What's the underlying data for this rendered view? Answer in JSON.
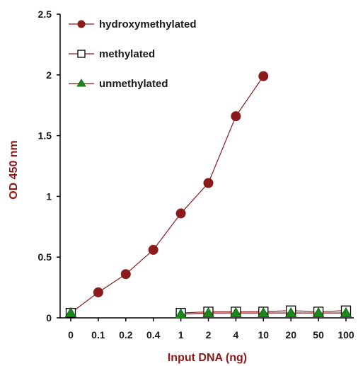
{
  "chart_data": {
    "type": "line",
    "xlabel": "Input DNA (ng)",
    "ylabel": "OD 450 nm",
    "categories": [
      "0",
      "0.1",
      "0.2",
      "0.4",
      "1",
      "2",
      "4",
      "10",
      "20",
      "50",
      "100"
    ],
    "ylim": [
      0,
      2.5
    ],
    "yticks": [
      0,
      0.5,
      1,
      1.5,
      2,
      2.5
    ],
    "ytick_labels": [
      "0",
      "0.5",
      "1",
      "1.5",
      "2",
      "2.5"
    ],
    "legend_position": "top-left",
    "grid": false,
    "axis_label_color": "#8b1a1a",
    "series": [
      {
        "name": "hydroxymethylated",
        "marker": "circle",
        "color": "#8b1a1a",
        "marker_fill": "#8b1a1a",
        "values": [
          0.04,
          0.21,
          0.36,
          0.56,
          0.86,
          1.11,
          1.66,
          1.99,
          null,
          null,
          null
        ]
      },
      {
        "name": "methylated",
        "marker": "square",
        "color": "#8b1a1a",
        "marker_fill": "#ffffff",
        "marker_stroke": "#000000",
        "values": [
          0.04,
          null,
          null,
          null,
          0.04,
          0.05,
          0.05,
          0.05,
          0.06,
          0.05,
          0.06
        ]
      },
      {
        "name": "unmethylated",
        "marker": "triangle",
        "color": "#8b1a1a",
        "marker_fill": "#1a8a1a",
        "values": [
          0.04,
          null,
          null,
          null,
          0.03,
          0.04,
          0.04,
          0.04,
          0.04,
          0.04,
          0.04
        ]
      }
    ]
  }
}
